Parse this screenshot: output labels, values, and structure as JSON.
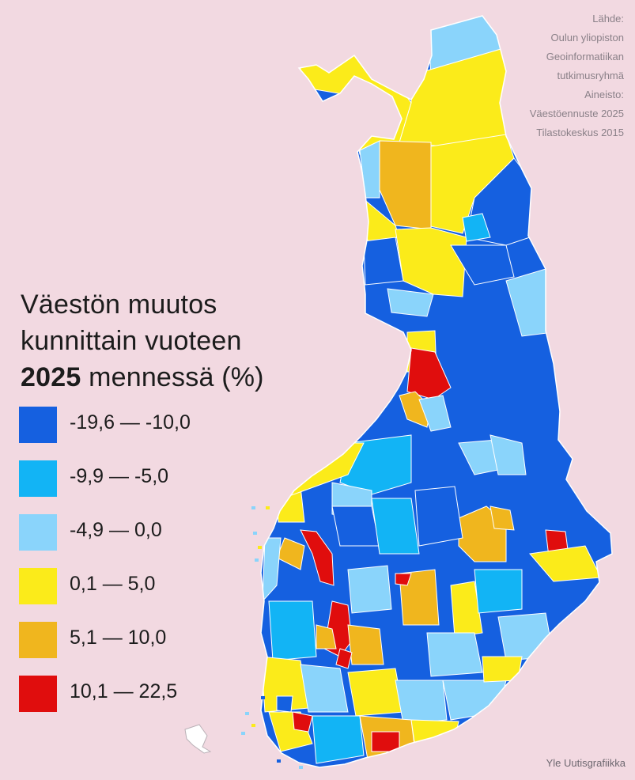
{
  "title": {
    "line1": "Väestön muutos",
    "line2": "kunnittain vuoteen",
    "year": "2025",
    "line3_rest": " mennessä (%)"
  },
  "source_lines": [
    "Lähde:",
    "Oulun yliopiston",
    "Geoinformatiikan",
    "tutkimusryhmä",
    "Aineisto:",
    "Väestöennuste 2025",
    "Tilastokeskus 2015"
  ],
  "legend": [
    {
      "label": "-19,6 — -10,0",
      "color": "#1560e0"
    },
    {
      "label": "-9,9 — -5,0",
      "color": "#12b4f5"
    },
    {
      "label": "-4,9 — 0,0",
      "color": "#8ad4fb"
    },
    {
      "label": "0,1 — 5,0",
      "color": "#fbeb1a"
    },
    {
      "label": "5,1 — 10,0",
      "color": "#f0b61e"
    },
    {
      "label": "10,1 — 22,5",
      "color": "#e00d0d"
    }
  ],
  "credit": "Yle Uutisgrafiikka"
}
